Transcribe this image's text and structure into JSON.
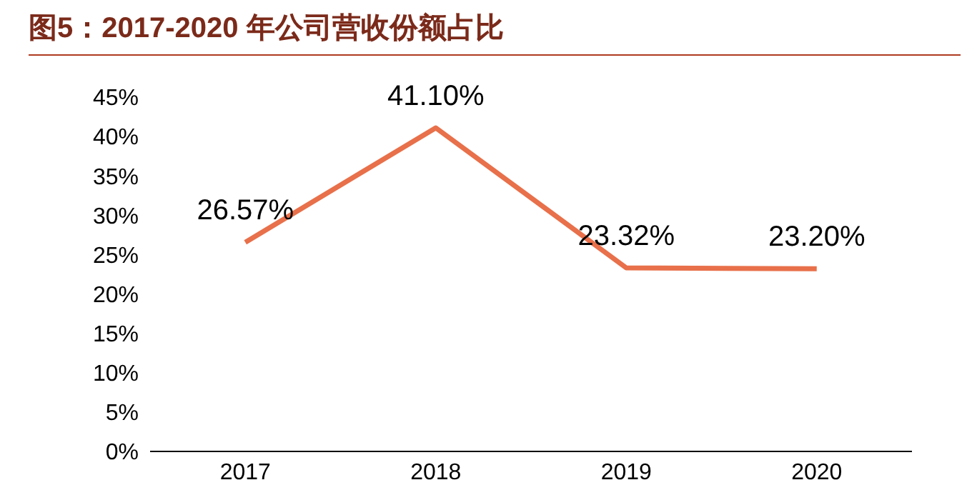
{
  "chart_data": {
    "type": "line",
    "title": "图5：2017-2020 年公司营收份额占比",
    "categories": [
      "2017",
      "2018",
      "2019",
      "2020"
    ],
    "series": [
      {
        "color": "#e8704a",
        "values": [
          26.57,
          41.1,
          23.32,
          23.2
        ],
        "value_labels": [
          "26.57%",
          "41.10%",
          "23.32%",
          "23.20%"
        ]
      }
    ],
    "ylim": [
      0,
      45
    ],
    "yticks": [
      {
        "value": 0,
        "label": "0%"
      },
      {
        "value": 5,
        "label": "5%"
      },
      {
        "value": 10,
        "label": "10%"
      },
      {
        "value": 15,
        "label": "15%"
      },
      {
        "value": 20,
        "label": "20%"
      },
      {
        "value": 25,
        "label": "25%"
      },
      {
        "value": 30,
        "label": "30%"
      },
      {
        "value": 35,
        "label": "35%"
      },
      {
        "value": 40,
        "label": "40%"
      },
      {
        "value": 45,
        "label": "45%"
      }
    ],
    "grid": false,
    "legend": false,
    "marker": "none",
    "line_style": "solid"
  }
}
